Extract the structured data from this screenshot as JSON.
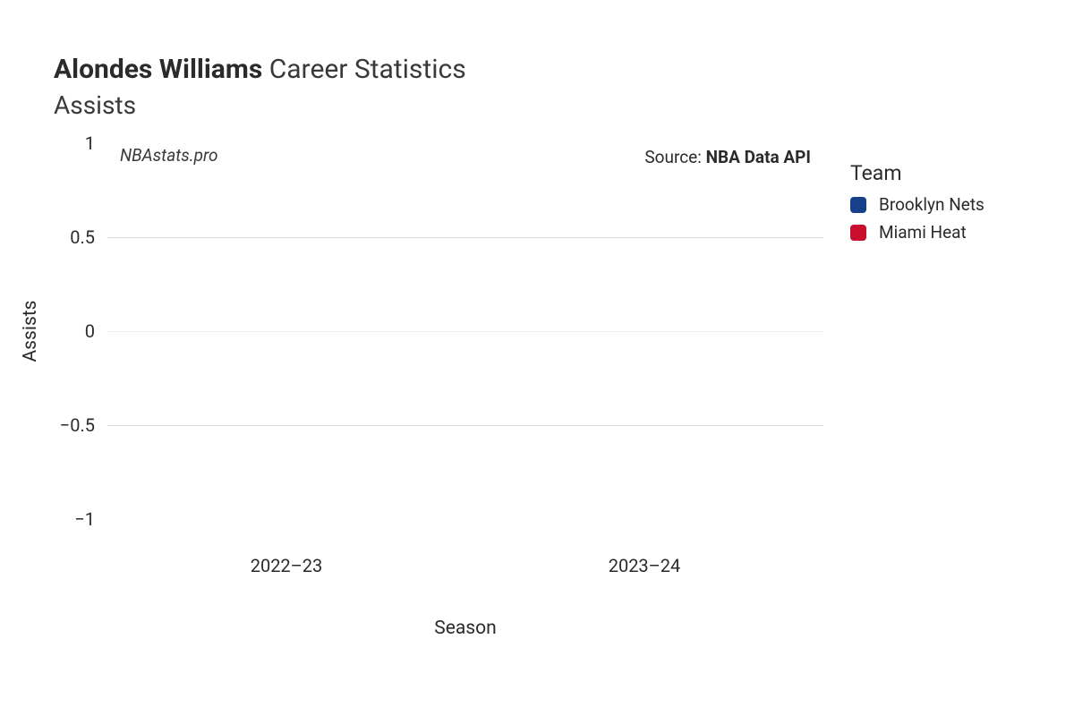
{
  "title": {
    "bold": "Alondes Williams",
    "light": " Career Statistics",
    "subtitle": "Assists"
  },
  "watermark": "NBAstats.pro",
  "source_prefix": "Source: ",
  "source_bold": "NBA Data API",
  "chart": {
    "type": "bar",
    "categories": [
      "2022–23",
      "2023–24"
    ],
    "x_positions_pct": [
      25,
      75
    ],
    "values": [
      0,
      0
    ],
    "ylim": [
      -1,
      1
    ],
    "ytick_values": [
      -1,
      -0.5,
      0,
      0.5,
      1
    ],
    "ytick_labels": [
      "−1",
      "−0.5",
      "0",
      "0.5",
      "1"
    ],
    "grid_colors": [
      "#ffffff",
      "#dcdcdc",
      "#f0f0f0",
      "#dcdcdc",
      "#ffffff"
    ],
    "xlabel": "Season",
    "ylabel": "Assists",
    "background_color": "#ffffff"
  },
  "legend": {
    "title": "Team",
    "items": [
      {
        "label": "Brooklyn Nets",
        "color": "#17408b"
      },
      {
        "label": "Miami Heat",
        "color": "#c8102e"
      }
    ]
  },
  "fontsize": {
    "title": 30,
    "subtitle": 28,
    "tick": 20,
    "axis_title": 21,
    "legend_title": 23,
    "legend_label": 19,
    "watermark": 19,
    "source": 19
  },
  "colors": {
    "text": "#2b2b2b",
    "text_light": "#3a3a3a",
    "background": "#ffffff"
  }
}
